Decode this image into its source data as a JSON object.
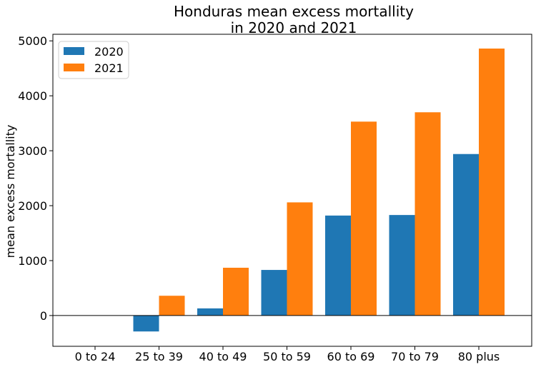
{
  "chart_data": {
    "type": "bar",
    "title_lines": [
      "Honduras mean excess mortallity",
      "in 2020 and 2021"
    ],
    "xlabel": "",
    "ylabel": "mean excess mortallity",
    "categories": [
      "0 to 24",
      "25 to 39",
      "40 to 49",
      "50 to 59",
      "60 to 69",
      "70 to 79",
      "80 plus"
    ],
    "series": [
      {
        "name": "2020",
        "color": "#1f77b4",
        "values": [
          0,
          -290,
          130,
          830,
          1820,
          1830,
          2940
        ]
      },
      {
        "name": "2021",
        "color": "#ff7f0e",
        "values": [
          0,
          360,
          870,
          2060,
          3530,
          3700,
          4860
        ]
      }
    ],
    "ylim": [
      -560,
      5120
    ],
    "yticks": [
      0,
      1000,
      2000,
      3000,
      4000,
      5000
    ],
    "grid": false,
    "legend_position": "top-left",
    "zero_line": true
  }
}
